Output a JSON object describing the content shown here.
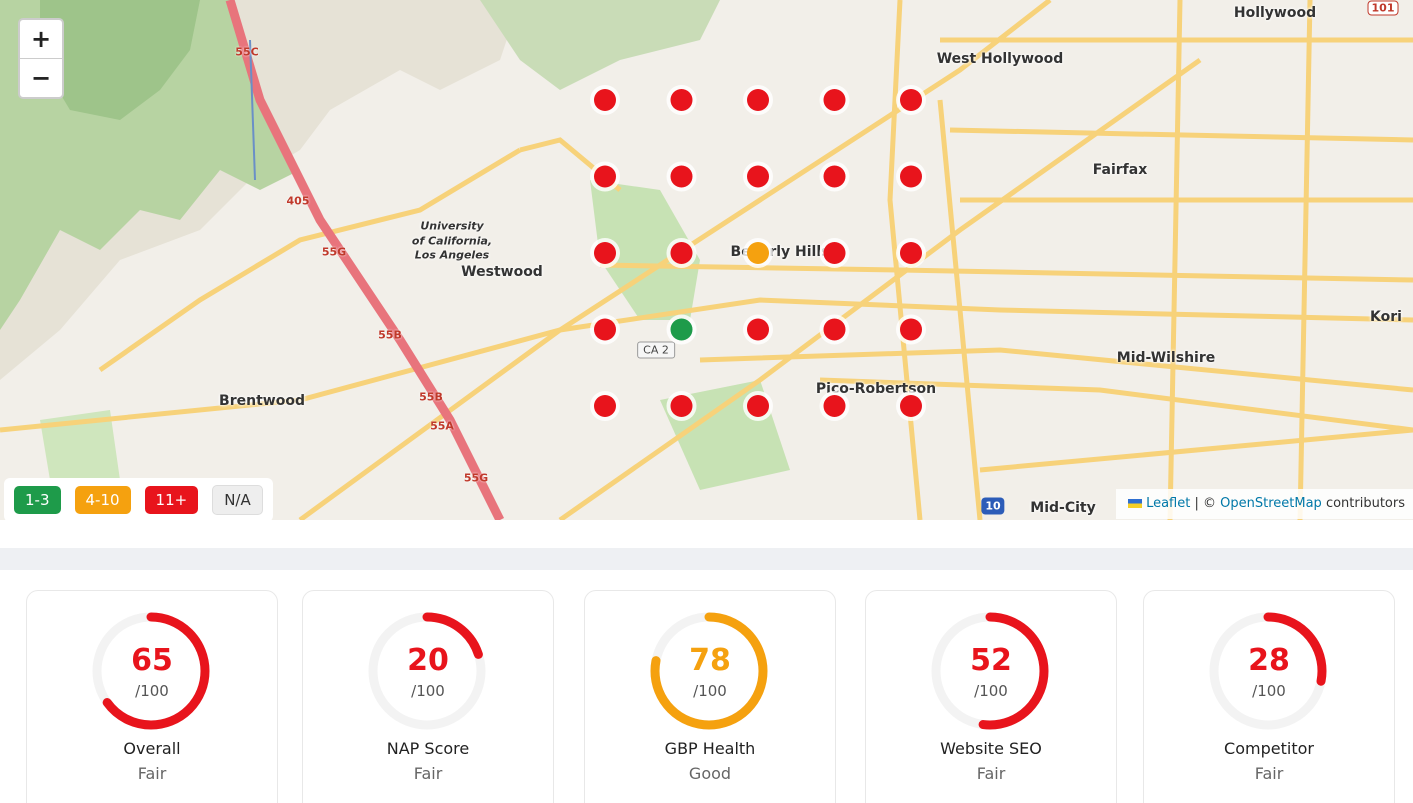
{
  "map": {
    "zoom": {
      "in": "+",
      "out": "−"
    },
    "places": {
      "hollywood": "Hollywood",
      "west_hollywood": "West Hollywood",
      "fairfax": "Fairfax",
      "ucla_1": "University",
      "ucla_2": "of California,",
      "ucla_3": "Los Angeles",
      "westwood": "Westwood",
      "beverly_hills": "Beverly Hills",
      "kori": "Kori",
      "mid_wilshire": "Mid-Wilshire",
      "brentwood": "Brentwood",
      "pico_robertson": "Pico-Robertson",
      "mid_city": "Mid-City"
    },
    "shields": {
      "ca2": "CA 2",
      "us101": "101",
      "i10": "10",
      "e55c": "55C",
      "e405": "405",
      "e55g": "55G",
      "e55b": "55B",
      "e55b2": "55B",
      "e55a": "55A",
      "e55g2": "55G"
    },
    "grid": [
      [
        "#e8141c",
        "#e8141c",
        "#e8141c",
        "#e8141c",
        "#e8141c"
      ],
      [
        "#e8141c",
        "#e8141c",
        "#e8141c",
        "#e8141c",
        "#e8141c"
      ],
      [
        "#e8141c",
        "#e8141c",
        "#f5a10f",
        "#e8141c",
        "#e8141c"
      ],
      [
        "#e8141c",
        "#1e9b4a",
        "#e8141c",
        "#e8141c",
        "#e8141c"
      ],
      [
        "#e8141c",
        "#e8141c",
        "#e8141c",
        "#e8141c",
        "#e8141c"
      ]
    ],
    "legend": [
      {
        "label": "1-3",
        "color": "#1e9b4a"
      },
      {
        "label": "4-10",
        "color": "#f5a10f"
      },
      {
        "label": "11+",
        "color": "#e8141c"
      },
      {
        "label": "N/A",
        "color": "#eeeeee"
      }
    ],
    "attribution": {
      "leaflet": "Leaflet",
      "separator": "| ©",
      "osm": "OpenStreetMap",
      "suffix": "contributors"
    }
  },
  "scores": [
    {
      "value": 65,
      "max": {
        "value": 100,
        "label": "/100"
      },
      "label": "Overall",
      "status": "Fair",
      "color": "#e8141c"
    },
    {
      "value": 20,
      "max": {
        "value": 100,
        "label": "/100"
      },
      "label": "NAP Score",
      "status": "Fair",
      "color": "#e8141c"
    },
    {
      "value": 78,
      "max": {
        "value": 100,
        "label": "/100"
      },
      "label": "GBP Health",
      "status": "Good",
      "color": "#f5a10f"
    },
    {
      "value": 52,
      "max": {
        "value": 100,
        "label": "/100"
      },
      "label": "Website SEO",
      "status": "Fair",
      "color": "#e8141c"
    },
    {
      "value": 28,
      "max": {
        "value": 100,
        "label": "/100"
      },
      "label": "Competitor",
      "status": "Fair",
      "color": "#e8141c"
    }
  ]
}
